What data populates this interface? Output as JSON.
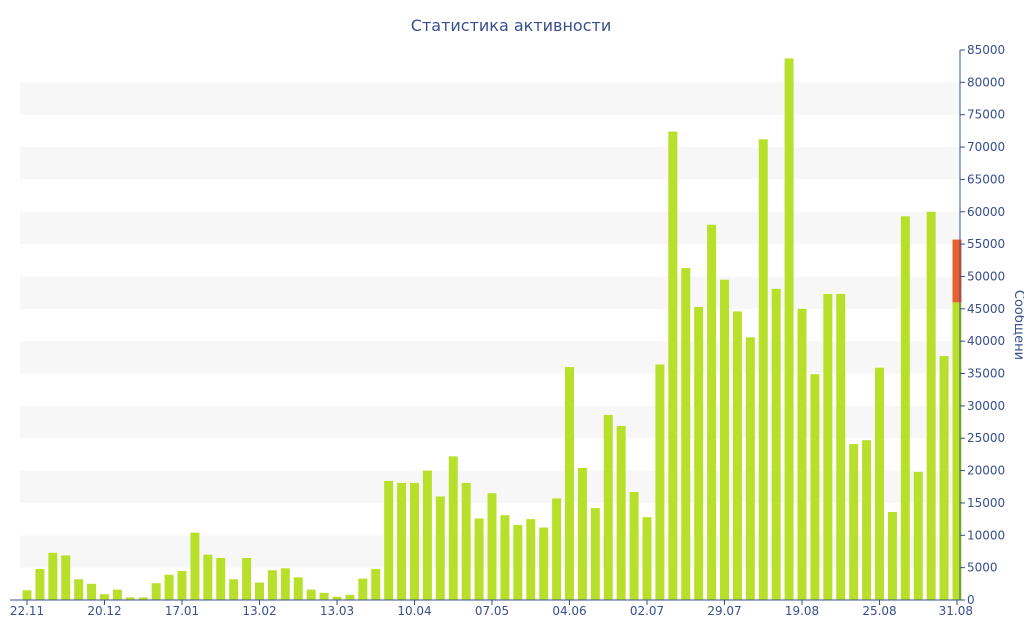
{
  "chart_data": {
    "type": "bar",
    "title": "Статистика активности",
    "ylabel": "Сообщени",
    "xlabel": "",
    "ylim": [
      0,
      85000
    ],
    "y_ticks": [
      0,
      5000,
      10000,
      15000,
      20000,
      25000,
      30000,
      35000,
      40000,
      45000,
      50000,
      55000,
      60000,
      65000,
      70000,
      75000,
      80000,
      85000
    ],
    "x_tick_labels": [
      {
        "index": 0,
        "label": "22.11"
      },
      {
        "index": 6,
        "label": "20.12"
      },
      {
        "index": 12,
        "label": "17.01"
      },
      {
        "index": 18,
        "label": "13.02"
      },
      {
        "index": 24,
        "label": "13.03"
      },
      {
        "index": 30,
        "label": "10.04"
      },
      {
        "index": 36,
        "label": "07.05"
      },
      {
        "index": 42,
        "label": "04.06"
      },
      {
        "index": 48,
        "label": "02.07"
      },
      {
        "index": 54,
        "label": "29.07"
      },
      {
        "index": 60,
        "label": "19.08"
      },
      {
        "index": 66,
        "label": "25.08"
      },
      {
        "index": 72,
        "label": "31.08"
      }
    ],
    "grid": "horizontal bands",
    "colors": {
      "bar": "#b8e02a",
      "highlight": "#e8602c",
      "text": "#3a4f8c",
      "band": "#f7f7f7"
    },
    "series": [
      {
        "values": [
          1500,
          4800,
          7300,
          6900,
          3200,
          2500,
          900,
          1600,
          400,
          400,
          2600,
          3900,
          4500,
          10400,
          7000,
          6500,
          3200,
          6500,
          2700,
          4600,
          4900,
          3500,
          1600,
          1100,
          500,
          800,
          3300,
          4800,
          18400,
          18100,
          18100,
          20000,
          16000,
          22200,
          18100,
          12600,
          16500,
          13100,
          11600,
          12500,
          11200,
          15700,
          36000,
          20400,
          14200,
          28600,
          26900,
          16700,
          12800,
          36400,
          72400,
          51300,
          45300,
          58000,
          49500,
          44600,
          40600,
          71200,
          48100,
          83700,
          45000,
          34900,
          47300,
          47300,
          24100,
          24700,
          35900,
          13600,
          59300,
          19800,
          60000,
          37700,
          46000
        ]
      },
      {
        "values": [
          0,
          0,
          0,
          0,
          0,
          0,
          0,
          0,
          0,
          0,
          0,
          0,
          0,
          0,
          0,
          0,
          0,
          0,
          0,
          0,
          0,
          0,
          0,
          0,
          0,
          0,
          0,
          0,
          0,
          0,
          0,
          0,
          0,
          0,
          0,
          0,
          0,
          0,
          0,
          0,
          0,
          0,
          0,
          0,
          0,
          0,
          0,
          0,
          0,
          0,
          0,
          0,
          0,
          0,
          0,
          0,
          0,
          0,
          0,
          0,
          0,
          0,
          0,
          0,
          0,
          0,
          0,
          0,
          0,
          0,
          0,
          0,
          9700
        ]
      }
    ]
  }
}
